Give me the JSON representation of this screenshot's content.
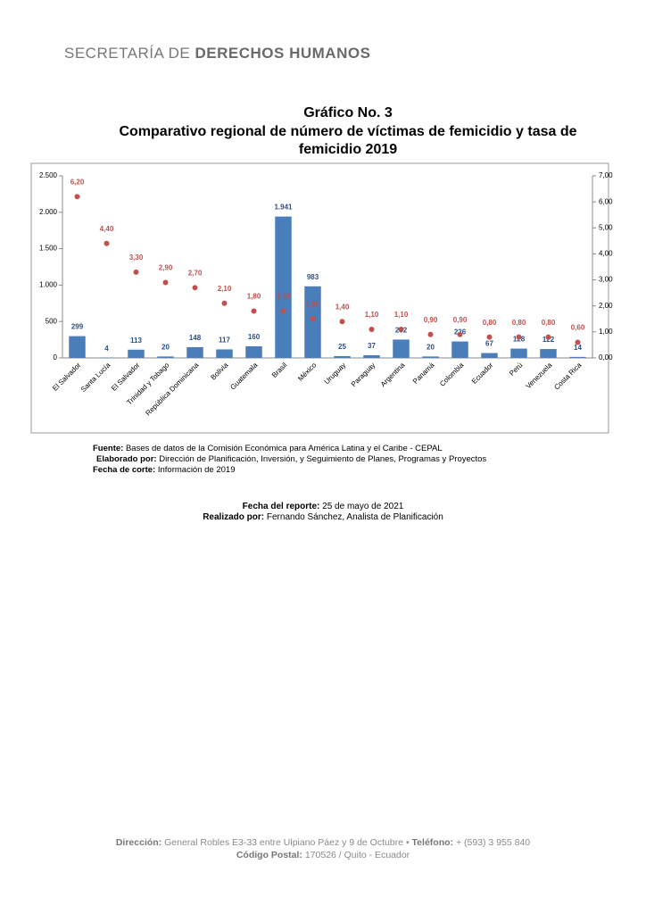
{
  "header": {
    "org_light": "SECRETARÍA DE",
    "org_bold": "DERECHOS HUMANOS"
  },
  "chart_data": {
    "type": "bar",
    "heading": "Gráfico No. 3",
    "title": "Comparativo regional de número de víctimas de femicidio y tasa de femicidio 2019",
    "categories": [
      "El Salvador",
      "Santa Lucía",
      "El Salvador",
      "Trinidad y Tobago",
      "República Dominicana",
      "Bolivia",
      "Guatemala",
      "Brasil",
      "México",
      "Uruguay",
      "Paraguay",
      "Argentina",
      "Panamá",
      "Colombia",
      "Ecuador",
      "Perú",
      "Venezuela",
      "Costa Rica"
    ],
    "series": [
      {
        "type": "bar",
        "color": "#4a7ebb",
        "values": [
          299,
          4,
          113,
          20,
          148,
          117,
          160,
          1941,
          983,
          25,
          37,
          252,
          20,
          226,
          67,
          128,
          122,
          14
        ],
        "value_labels": [
          "299",
          "4",
          "113",
          "20",
          "148",
          "117",
          "160",
          "1.941",
          "983",
          "25",
          "37",
          "252",
          "20",
          "226",
          "67",
          "128",
          "122",
          "14"
        ]
      },
      {
        "type": "scatter",
        "axis": "y2",
        "color": "#c0504d",
        "values": [
          6.2,
          4.4,
          3.3,
          2.9,
          2.7,
          2.1,
          1.8,
          1.8,
          1.5,
          1.4,
          1.1,
          1.1,
          0.9,
          0.9,
          0.8,
          0.8,
          0.8,
          0.6
        ],
        "value_labels": [
          "6,20",
          "4,40",
          "3,30",
          "2,90",
          "2,70",
          "2,10",
          "1,80",
          "1,80",
          "1,50",
          "1,40",
          "1,10",
          "1,10",
          "0,90",
          "0,90",
          "0,80",
          "0,80",
          "0,80",
          "0,60"
        ]
      }
    ],
    "ylim": [
      0,
      2500
    ],
    "yticks": [
      0,
      500,
      {
        "value": 1000,
        "label": "1.000"
      },
      {
        "value": 1500,
        "label": "1.500"
      },
      {
        "value": 2000,
        "label": "2.000"
      },
      {
        "value": 2500,
        "label": "2.500"
      }
    ],
    "y2lim": [
      0,
      7
    ],
    "y2ticks": [
      {
        "value": 0,
        "label": "0,00"
      },
      {
        "value": 1,
        "label": "1,00"
      },
      {
        "value": 2,
        "label": "2,00"
      },
      {
        "value": 3,
        "label": "3,00"
      },
      {
        "value": 4,
        "label": "4,00"
      },
      {
        "value": 5,
        "label": "5,00"
      },
      {
        "value": 6,
        "label": "6,00"
      },
      {
        "value": 7,
        "label": "7,00"
      }
    ],
    "grid": false
  },
  "notes": [
    {
      "label": "Fuente:",
      "text": "Bases de datos de la Comisión Económica para América Latina y el Caribe - CEPAL"
    },
    {
      "label": "Elaborado por:",
      "text": "Dirección de Planificación, Inversión, y Seguimiento de Planes, Programas y Proyectos"
    },
    {
      "label": "Fecha de corte:",
      "text": "Información de 2019"
    }
  ],
  "report": [
    {
      "label": "Fecha del reporte:",
      "text": "25 de mayo de 2021"
    },
    {
      "label": "Realizado por:",
      "text": "Fernando Sánchez, Analista de Planificación"
    }
  ],
  "footer": [
    {
      "label": "Dirección:",
      "text": "General Robles E3-33 entre Ulpiano Páez y 9 de Octubre •",
      "label2": "Teléfono:",
      "text2": "+ (593) 3 955 840"
    },
    {
      "label": "Código Postal:",
      "text": "170526 / Quito - Ecuador"
    }
  ]
}
